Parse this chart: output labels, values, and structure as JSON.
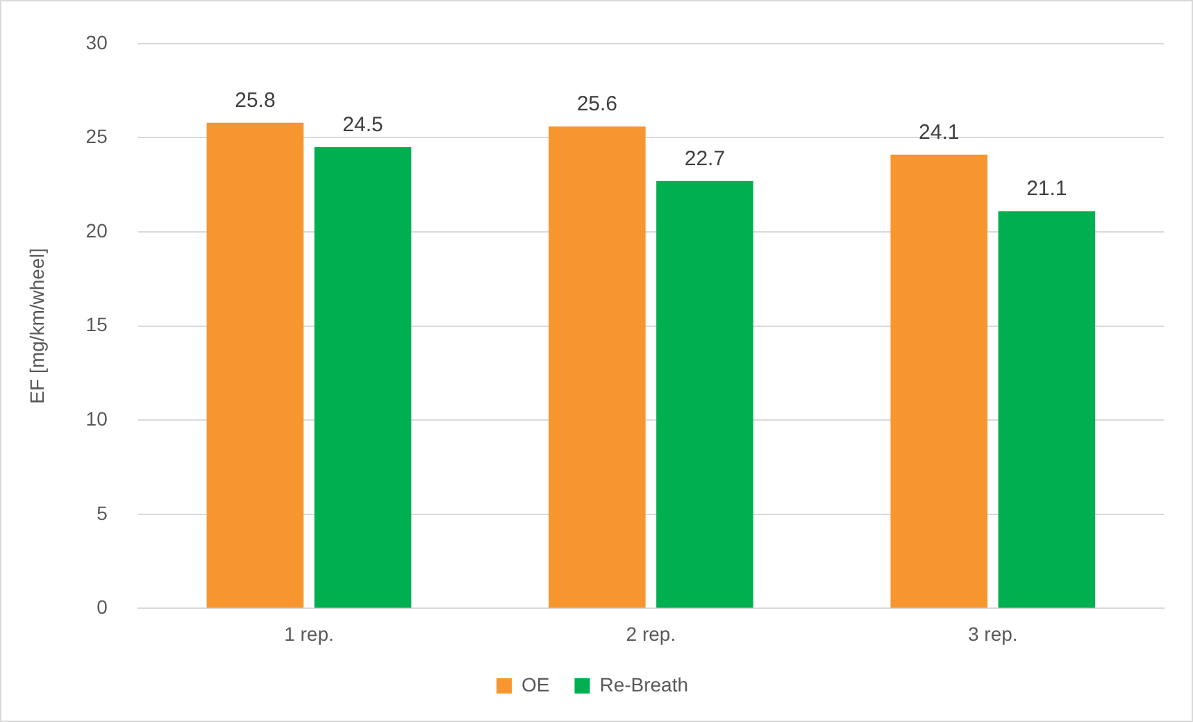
{
  "chart_data": {
    "type": "bar",
    "ylabel": "EF [mg/km/wheel]",
    "categories": [
      "1 rep.",
      "2 rep.",
      "3 rep."
    ],
    "series": [
      {
        "name": "OE",
        "color": "#f7962e",
        "values": [
          25.8,
          25.6,
          24.1
        ]
      },
      {
        "name": "Re-Breath",
        "color": "#00b050",
        "values": [
          24.5,
          22.7,
          21.1
        ]
      }
    ],
    "ylim": [
      0,
      30
    ],
    "yticks": [
      0,
      5,
      10,
      15,
      20,
      25,
      30
    ],
    "grid": "y",
    "legend": "bottom",
    "data_labels": true
  }
}
